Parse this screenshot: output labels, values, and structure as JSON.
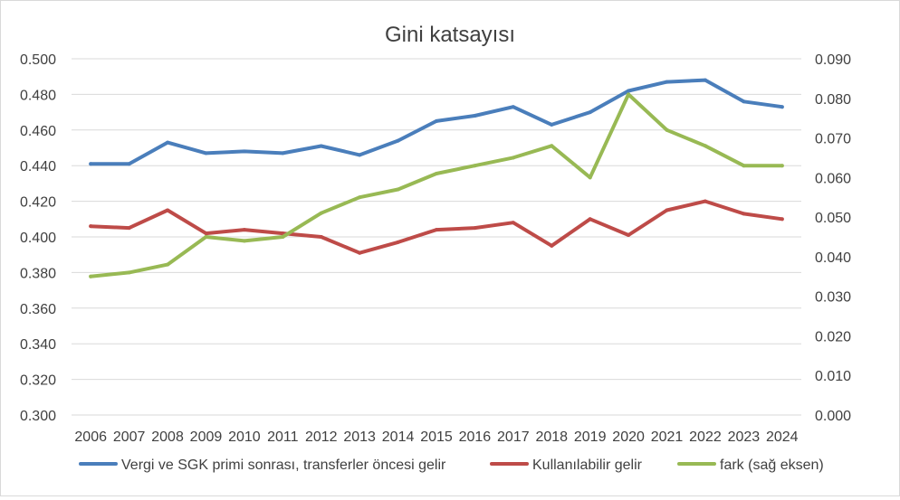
{
  "chart_data": {
    "type": "line",
    "title": "Gini katsayısı",
    "xlabel": "",
    "ylabel": "",
    "categories": [
      "2006",
      "2007",
      "2008",
      "2009",
      "2010",
      "2011",
      "2012",
      "2013",
      "2014",
      "2015",
      "2016",
      "2017",
      "2018",
      "2019",
      "2020",
      "2021",
      "2022",
      "2023",
      "2024"
    ],
    "y_left": {
      "min": 0.3,
      "max": 0.5,
      "step": 0.02,
      "ticks": [
        "0.300",
        "0.320",
        "0.340",
        "0.360",
        "0.380",
        "0.400",
        "0.420",
        "0.440",
        "0.460",
        "0.480",
        "0.500"
      ]
    },
    "y_right": {
      "min": 0.0,
      "max": 0.09,
      "step": 0.01,
      "ticks": [
        "0.000",
        "0.010",
        "0.020",
        "0.030",
        "0.040",
        "0.050",
        "0.060",
        "0.070",
        "0.080",
        "0.090"
      ]
    },
    "grid": true,
    "legend": "bottom",
    "series": [
      {
        "name": "Vergi ve SGK primi sonrası, transferler öncesi gelir",
        "axis": "left",
        "color": "#4a7ebb",
        "values": [
          0.441,
          0.441,
          0.453,
          0.447,
          0.448,
          0.447,
          0.451,
          0.446,
          0.454,
          0.465,
          0.468,
          0.473,
          0.463,
          0.47,
          0.482,
          0.487,
          0.488,
          0.476,
          0.473
        ]
      },
      {
        "name": "Kullanılabilir gelir",
        "axis": "left",
        "color": "#be4b48",
        "values": [
          0.406,
          0.405,
          0.415,
          0.402,
          0.404,
          0.402,
          0.4,
          0.391,
          0.397,
          0.404,
          0.405,
          0.408,
          0.395,
          0.41,
          0.401,
          0.415,
          0.42,
          0.413,
          0.41
        ]
      },
      {
        "name": "fark (sağ eksen)",
        "axis": "right",
        "color": "#98b954",
        "values": [
          0.035,
          0.036,
          0.038,
          0.045,
          0.044,
          0.045,
          0.051,
          0.055,
          0.057,
          0.061,
          0.063,
          0.065,
          0.068,
          0.06,
          0.081,
          0.072,
          0.068,
          0.063,
          0.063
        ]
      }
    ]
  }
}
